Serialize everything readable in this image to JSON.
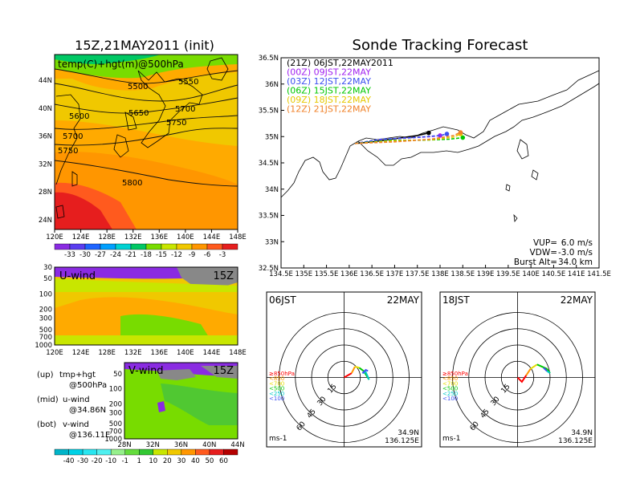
{
  "left_panel": {
    "title": "15Z,21MAY2011 (init)",
    "map_label": "temp(C)+hgt(m)@500hPa",
    "lon_ticks": [
      "120E",
      "124E",
      "128E",
      "132E",
      "136E",
      "140E",
      "144E",
      "148E"
    ],
    "lat_ticks": [
      "24N",
      "28N",
      "32N",
      "36N",
      "40N",
      "44N"
    ],
    "contour_labels": [
      "5500",
      "5550",
      "5600",
      "5650",
      "5700",
      "5700",
      "5750",
      "5750",
      "5800"
    ],
    "colorbar_labels": [
      "-33",
      "-30",
      "-27",
      "-24",
      "-21",
      "-18",
      "-15",
      "-12",
      "-9",
      "-6",
      "-3"
    ],
    "colorbar_colors": [
      "#8a2be2",
      "#5a3df0",
      "#1e64ff",
      "#00a0ff",
      "#00d2d2",
      "#00c864",
      "#78dc00",
      "#c8e600",
      "#f0c800",
      "#ff9600",
      "#ff5a1e",
      "#e61e1e"
    ]
  },
  "uwind_panel": {
    "title": "U-wind",
    "time": "15Z",
    "p_ticks": [
      "30",
      "50",
      "100",
      "200",
      "300",
      "500",
      "700",
      "1000"
    ],
    "lon_ticks": [
      "120E",
      "124E",
      "128E",
      "132E",
      "136E",
      "140E",
      "144E",
      "148E"
    ]
  },
  "vwind_panel": {
    "title": "V-wind",
    "time": "15Z",
    "p_ticks": [
      "50",
      "100",
      "200",
      "300",
      "500",
      "700",
      "1000"
    ],
    "lat_ticks": [
      "28N",
      "32N",
      "36N",
      "40N",
      "44N"
    ]
  },
  "legend_text": [
    {
      "a": "(up)",
      "b": "tmp+hgt",
      "c": "@500hPa"
    },
    {
      "a": "(mid)",
      "b": "u-wind",
      "c": "@34.86N"
    },
    {
      "a": "(bot)",
      "b": "v-wind",
      "c": "@136.11E"
    }
  ],
  "wind_colorbar": {
    "labels": [
      "-40",
      "-30",
      "-20",
      "-10",
      "-1",
      "1",
      "10",
      "20",
      "30",
      "40",
      "50",
      "60"
    ],
    "colors": [
      "#00b4c8",
      "#00d2e6",
      "#28e6f0",
      "#50f0f0",
      "#96f08c",
      "#64dc3c",
      "#32c832",
      "#c8e600",
      "#f0c800",
      "#ff9600",
      "#ff5a1e",
      "#e61e1e",
      "#b40000"
    ]
  },
  "main": {
    "title": "Sonde Tracking Forecast",
    "lon_ticks": [
      "134.5E",
      "135E",
      "135.5E",
      "136E",
      "136.5E",
      "137E",
      "137.5E",
      "138E",
      "138.5E",
      "139E",
      "139.5E",
      "140E",
      "140.5E",
      "141E",
      "141.5E"
    ],
    "lat_ticks": [
      "32.5N",
      "33N",
      "33.5N",
      "34N",
      "34.5N",
      "35N",
      "35.5N",
      "36N",
      "36.5N"
    ],
    "launches": [
      {
        "label": "(21Z)  06JST,22MAY2011",
        "color": "#000000"
      },
      {
        "label": "(00Z)  09JST,22MAY",
        "color": "#a020f0"
      },
      {
        "label": "(03Z)  12JST,22MAY",
        "color": "#3c50f0"
      },
      {
        "label": "(06Z)  15JST,22MAY",
        "color": "#00c800"
      },
      {
        "label": "(09Z)  18JST,22MAY",
        "color": "#e6c800"
      },
      {
        "label": "(12Z)  21JST,22MAY",
        "color": "#f08228"
      }
    ],
    "params": [
      {
        "k": "VUP=",
        "v": "6.0  m/s"
      },
      {
        "k": "VDW=",
        "v": "-3.0  m/s"
      },
      {
        "k": "Burst Alt=",
        "v": "34.0  km"
      }
    ]
  },
  "hodographs": [
    {
      "time": "06JST",
      "date": "22MAY",
      "lat": "34.9N",
      "lon": "136.125E",
      "unit": "ms-1"
    },
    {
      "time": "18JST",
      "date": "22MAY",
      "lat": "34.9N",
      "lon": "136.125E",
      "unit": "ms-1"
    }
  ],
  "hodo_ring_labels": [
    "15",
    "30",
    "45",
    "60"
  ],
  "hodo_levels": [
    {
      "label": "≥850hPa",
      "color": "#ff0000"
    },
    {
      "label": "<850",
      "color": "#ff9600"
    },
    {
      "label": "<700",
      "color": "#e6dc00"
    },
    {
      "label": "<500",
      "color": "#00c800"
    },
    {
      "label": "<250",
      "color": "#00c8c8"
    },
    {
      "label": "<100",
      "color": "#3c50f0"
    }
  ],
  "chart_data": [
    {
      "type": "line",
      "title": "Sonde Tracking Forecast",
      "xlim": [
        134.5,
        141.5
      ],
      "ylim": [
        32.5,
        36.5
      ],
      "series": [
        {
          "name": "(21Z)  06JST,22MAY2011",
          "color": "#000000",
          "x": [
            136.13,
            136.5,
            137.0,
            137.5,
            137.75
          ],
          "y": [
            34.87,
            34.9,
            34.96,
            35.02,
            35.07
          ]
        },
        {
          "name": "(00Z)  09JST,22MAY",
          "color": "#a020f0",
          "x": [
            136.13,
            136.6,
            137.2,
            137.8,
            138.0
          ],
          "y": [
            34.87,
            34.93,
            34.97,
            35.0,
            35.02
          ]
        },
        {
          "name": "(03Z)  12JST,22MAY",
          "color": "#3c50f0",
          "x": [
            136.13,
            136.7,
            137.4,
            138.0,
            138.15
          ],
          "y": [
            34.87,
            34.95,
            34.98,
            35.02,
            35.05
          ]
        },
        {
          "name": "(06Z)  15JST,22MAY",
          "color": "#00c800",
          "x": [
            136.13,
            136.9,
            137.6,
            138.2,
            138.5
          ],
          "y": [
            34.87,
            34.93,
            34.93,
            34.95,
            34.98
          ]
        },
        {
          "name": "(09Z)  18JST,22MAY",
          "color": "#e6c800",
          "x": [
            136.13,
            137.0,
            137.8,
            138.3,
            138.45
          ],
          "y": [
            34.87,
            34.92,
            34.94,
            34.99,
            35.05
          ]
        },
        {
          "name": "(12Z)  21JST,22MAY",
          "color": "#f08228",
          "x": [
            136.13,
            137.0,
            137.8,
            138.3,
            138.45
          ],
          "y": [
            34.87,
            34.9,
            34.95,
            35.02,
            35.08
          ]
        }
      ]
    },
    {
      "type": "scatter",
      "title": "06JST 22MAY",
      "unit": "ms-1",
      "segments": [
        {
          "level": "≥850hPa",
          "color": "#ff0000",
          "u": [
            0,
            7
          ],
          "v": [
            0,
            4
          ]
        },
        {
          "level": "<850",
          "color": "#ff9600",
          "u": [
            7,
            10
          ],
          "v": [
            4,
            10
          ]
        },
        {
          "level": "<700",
          "color": "#e6dc00",
          "u": [
            10,
            14
          ],
          "v": [
            10,
            9
          ]
        },
        {
          "level": "<500",
          "color": "#00c800",
          "u": [
            14,
            18,
            23
          ],
          "v": [
            9,
            6,
            -2
          ]
        },
        {
          "level": "<250",
          "color": "#00c8c8",
          "u": [
            23,
            20,
            17
          ],
          "v": [
            -2,
            5,
            4
          ]
        },
        {
          "level": "<100",
          "color": "#3c50f0",
          "u": [
            17,
            20,
            22
          ],
          "v": [
            4,
            7,
            6
          ]
        }
      ]
    },
    {
      "type": "scatter",
      "title": "18JST 22MAY",
      "unit": "ms-1",
      "segments": [
        {
          "level": "≥850hPa",
          "color": "#ff0000",
          "u": [
            0,
            4,
            8
          ],
          "v": [
            0,
            -4,
            2
          ]
        },
        {
          "level": "<850",
          "color": "#ff9600",
          "u": [
            8,
            12
          ],
          "v": [
            2,
            8
          ]
        },
        {
          "level": "<700",
          "color": "#e6dc00",
          "u": [
            12,
            18
          ],
          "v": [
            8,
            12
          ]
        },
        {
          "level": "<500",
          "color": "#00c800",
          "u": [
            18,
            27,
            30
          ],
          "v": [
            12,
            8,
            4
          ]
        },
        {
          "level": "<250",
          "color": "#00c8c8",
          "u": [
            30,
            27
          ],
          "v": [
            4,
            6
          ]
        },
        {
          "level": "<100",
          "color": "#3c50f0",
          "u": [
            27,
            24
          ],
          "v": [
            6,
            9
          ]
        }
      ]
    }
  ]
}
